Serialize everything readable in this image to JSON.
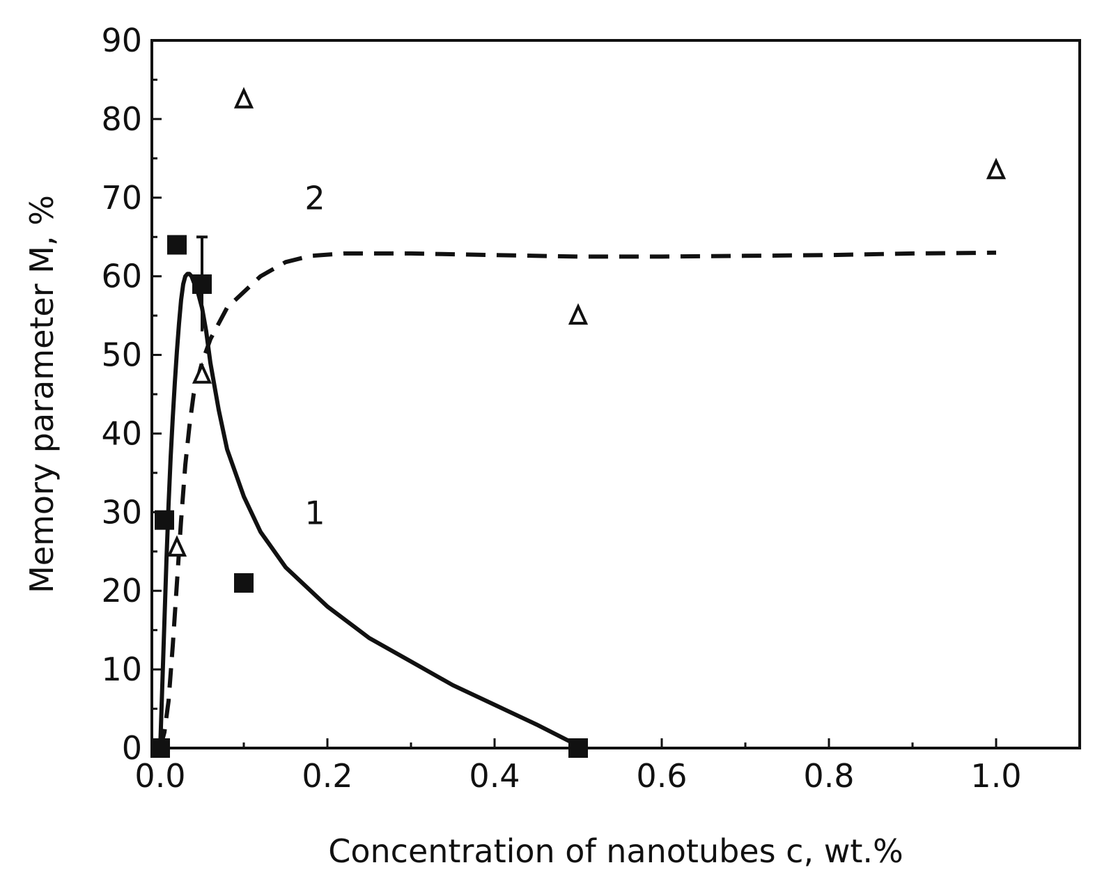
{
  "chart_data": {
    "type": "scatter",
    "title": "",
    "xlabel": "Concentration of nanotubes c, wt.%",
    "ylabel": "Memory parameter M, %",
    "xlim": [
      -0.01,
      1.1
    ],
    "ylim": [
      0,
      90
    ],
    "xticks": [
      "0.0",
      "0.2",
      "0.4",
      "0.6",
      "0.8",
      "1.0"
    ],
    "yticks": [
      "0",
      "10",
      "20",
      "30",
      "40",
      "50",
      "60",
      "70",
      "80",
      "90"
    ],
    "grid": false,
    "series": [
      {
        "name": "squares",
        "marker": "filled-square",
        "points": [
          {
            "x": 0.0,
            "y": 0
          },
          {
            "x": 0.005,
            "y": 29
          },
          {
            "x": 0.02,
            "y": 64
          },
          {
            "x": 0.05,
            "y": 59
          },
          {
            "x": 0.1,
            "y": 21
          },
          {
            "x": 0.5,
            "y": 0
          }
        ],
        "error_bars": [
          {
            "x": 0.05,
            "low": 53,
            "high": 65
          }
        ]
      },
      {
        "name": "triangles",
        "marker": "open-triangle",
        "points": [
          {
            "x": 0.02,
            "y": 25.5
          },
          {
            "x": 0.05,
            "y": 47.5
          },
          {
            "x": 0.1,
            "y": 82.5
          },
          {
            "x": 0.5,
            "y": 55
          },
          {
            "x": 1.0,
            "y": 73.5
          }
        ]
      }
    ],
    "curves": [
      {
        "label": "1",
        "style": "solid",
        "points": [
          [
            0.0,
            0
          ],
          [
            0.0025,
            8
          ],
          [
            0.005,
            16
          ],
          [
            0.0075,
            24
          ],
          [
            0.01,
            31
          ],
          [
            0.0125,
            37
          ],
          [
            0.015,
            42
          ],
          [
            0.0175,
            46.5
          ],
          [
            0.02,
            50.5
          ],
          [
            0.0225,
            54
          ],
          [
            0.025,
            57
          ],
          [
            0.0275,
            59
          ],
          [
            0.03,
            60
          ],
          [
            0.0325,
            60.3
          ],
          [
            0.035,
            60.3
          ],
          [
            0.0375,
            60
          ],
          [
            0.04,
            59.3
          ],
          [
            0.045,
            58
          ],
          [
            0.05,
            56
          ],
          [
            0.055,
            53
          ],
          [
            0.06,
            49
          ],
          [
            0.07,
            43
          ],
          [
            0.08,
            38
          ],
          [
            0.1,
            32
          ],
          [
            0.12,
            27.5
          ],
          [
            0.15,
            23
          ],
          [
            0.2,
            18
          ],
          [
            0.25,
            14
          ],
          [
            0.3,
            11
          ],
          [
            0.35,
            8
          ],
          [
            0.4,
            5.5
          ],
          [
            0.45,
            3
          ],
          [
            0.5,
            0.3
          ]
        ]
      },
      {
        "label": "2",
        "style": "dashed",
        "points": [
          [
            0.0,
            0
          ],
          [
            0.005,
            2
          ],
          [
            0.01,
            6
          ],
          [
            0.015,
            13
          ],
          [
            0.02,
            21
          ],
          [
            0.025,
            29
          ],
          [
            0.03,
            36
          ],
          [
            0.035,
            41
          ],
          [
            0.04,
            45
          ],
          [
            0.05,
            49
          ],
          [
            0.06,
            52
          ],
          [
            0.07,
            54
          ],
          [
            0.08,
            56
          ],
          [
            0.1,
            58
          ],
          [
            0.12,
            60
          ],
          [
            0.15,
            61.8
          ],
          [
            0.18,
            62.6
          ],
          [
            0.22,
            62.9
          ],
          [
            0.3,
            62.9
          ],
          [
            0.4,
            62.7
          ],
          [
            0.5,
            62.5
          ],
          [
            0.6,
            62.5
          ],
          [
            0.7,
            62.6
          ],
          [
            0.8,
            62.7
          ],
          [
            0.9,
            62.9
          ],
          [
            1.0,
            63
          ]
        ]
      }
    ],
    "curve_labels": [
      {
        "text": "1",
        "x": 0.185,
        "y": 28.5
      },
      {
        "text": "2",
        "x": 0.185,
        "y": 68.5
      }
    ]
  }
}
